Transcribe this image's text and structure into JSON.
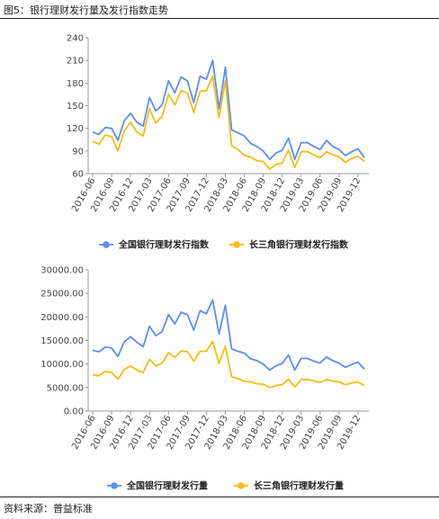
{
  "figure_title": "图5：银行理财发行量及发行指数走势",
  "source": "资料来源：普益标准",
  "colors": {
    "national": "#5B8FF9",
    "yrd": "#F6BD16",
    "axis": "#999999",
    "grid": "#dddddd"
  },
  "chart_data": [
    {
      "type": "line",
      "title": "",
      "xlabel": "",
      "ylabel": "",
      "ylim": [
        60,
        240
      ],
      "yticks": [
        "240",
        "210",
        "180",
        "150",
        "120",
        "90",
        "60"
      ],
      "xticks": [
        "2016-06",
        "2016-09",
        "2016-12",
        "2017-03",
        "2017-06",
        "2017-09",
        "2017-12",
        "2018-03",
        "2018-06",
        "2018-09",
        "2018-12",
        "2019-03",
        "2019-06",
        "2019-09",
        "2019-12"
      ],
      "legend": "bottom",
      "x": [
        "2016-06",
        "2016-07",
        "2016-08",
        "2016-09",
        "2016-10",
        "2016-11",
        "2016-12",
        "2017-01",
        "2017-02",
        "2017-03",
        "2017-04",
        "2017-05",
        "2017-06",
        "2017-07",
        "2017-08",
        "2017-09",
        "2017-10",
        "2017-11",
        "2017-12",
        "2018-01",
        "2018-02",
        "2018-03",
        "2018-04",
        "2018-05",
        "2018-06",
        "2018-07",
        "2018-08",
        "2018-09",
        "2018-10",
        "2018-11",
        "2018-12",
        "2019-01",
        "2019-02",
        "2019-03",
        "2019-04",
        "2019-05",
        "2019-06",
        "2019-07",
        "2019-08",
        "2019-09",
        "2019-10",
        "2019-11",
        "2019-12",
        "2020-01"
      ],
      "series": [
        {
          "name": "全国银行理财发行指数",
          "color": "#5B8FF9",
          "values": [
            115,
            112,
            121,
            120,
            104,
            130,
            140,
            128,
            123,
            161,
            143,
            151,
            183,
            167,
            188,
            183,
            154,
            189,
            185,
            210,
            146,
            201,
            118,
            114,
            110,
            100,
            96,
            90,
            79,
            87,
            91,
            107,
            79,
            101,
            101,
            96,
            92,
            104,
            96,
            92,
            84,
            89,
            93,
            81
          ]
        },
        {
          "name": "长三角银行理财发行指数",
          "color": "#F6BD16",
          "values": [
            103,
            99,
            111,
            109,
            90,
            117,
            128,
            115,
            110,
            146,
            127,
            136,
            165,
            151,
            170,
            167,
            141,
            169,
            170,
            189,
            134,
            183,
            97,
            92,
            84,
            82,
            77,
            76,
            66,
            72,
            74,
            91,
            68,
            89,
            89,
            85,
            81,
            89,
            85,
            82,
            75,
            80,
            83,
            76
          ]
        }
      ]
    },
    {
      "type": "line",
      "title": "",
      "xlabel": "",
      "ylabel": "",
      "ylim": [
        0,
        30000
      ],
      "yticks": [
        "30000.00",
        "25000.00",
        "20000.00",
        "15000.00",
        "10000.00",
        "5000.00",
        "0.00"
      ],
      "xticks": [
        "2016-06",
        "2016-09",
        "2016-12",
        "2017-03",
        "2017-06",
        "2017-09",
        "2017-12",
        "2018-03",
        "2018-06",
        "2018-09",
        "2018-12",
        "2019-03",
        "2019-06",
        "2019-09",
        "2019-12"
      ],
      "legend": "bottom",
      "x": [
        "2016-06",
        "2016-07",
        "2016-08",
        "2016-09",
        "2016-10",
        "2016-11",
        "2016-12",
        "2017-01",
        "2017-02",
        "2017-03",
        "2017-04",
        "2017-05",
        "2017-06",
        "2017-07",
        "2017-08",
        "2017-09",
        "2017-10",
        "2017-11",
        "2017-12",
        "2018-01",
        "2018-02",
        "2018-03",
        "2018-04",
        "2018-05",
        "2018-06",
        "2018-07",
        "2018-08",
        "2018-09",
        "2018-10",
        "2018-11",
        "2018-12",
        "2019-01",
        "2019-02",
        "2019-03",
        "2019-04",
        "2019-05",
        "2019-06",
        "2019-07",
        "2019-08",
        "2019-09",
        "2019-10",
        "2019-11",
        "2019-12",
        "2020-01"
      ],
      "series": [
        {
          "name": "全国银行理财发行量",
          "color": "#5B8FF9",
          "values": [
            12900,
            12600,
            13600,
            13400,
            11600,
            14700,
            15800,
            14600,
            13700,
            18000,
            16000,
            16900,
            20500,
            18500,
            21000,
            20500,
            17200,
            21300,
            20700,
            23600,
            16400,
            22500,
            13200,
            12700,
            12300,
            11100,
            10700,
            10000,
            8700,
            9600,
            10100,
            11900,
            8700,
            11200,
            11200,
            10600,
            10200,
            11500,
            10700,
            10200,
            9300,
            9900,
            10400,
            8900
          ]
        },
        {
          "name": "长三角银行理财发行量",
          "color": "#F6BD16",
          "values": [
            7700,
            7500,
            8400,
            8200,
            6800,
            8800,
            9600,
            8700,
            8200,
            11000,
            9600,
            10200,
            12400,
            11400,
            12800,
            12600,
            10600,
            12700,
            12700,
            14800,
            10100,
            13800,
            7300,
            6900,
            6300,
            6200,
            5800,
            5700,
            5000,
            5400,
            5600,
            6800,
            5100,
            6700,
            6700,
            6400,
            6100,
            6700,
            6400,
            6200,
            5600,
            6000,
            6200,
            5400
          ]
        }
      ]
    }
  ]
}
